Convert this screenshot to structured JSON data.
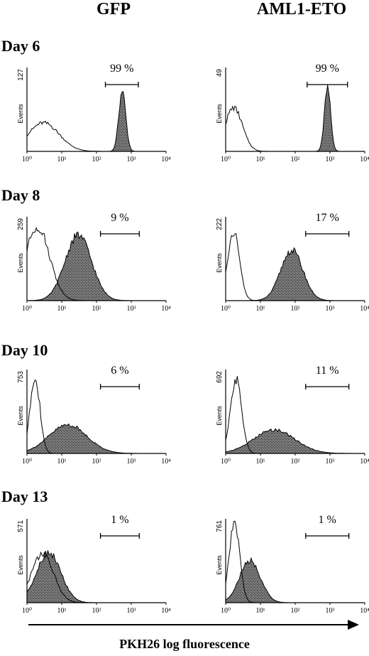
{
  "figure": {
    "columns": [
      "GFP",
      "AML1-ETO"
    ],
    "xaxis_caption": "PKH26 log fluorescence"
  },
  "chart_data": {
    "type": "histogram-grid",
    "x_scale": "log",
    "x_ticks": [
      "10⁰",
      "10¹",
      "10²",
      "10³",
      "10⁴"
    ],
    "x_tick_values": [
      1,
      10,
      100,
      1000,
      10000
    ],
    "ylabel": "Events",
    "rows": [
      {
        "day": "Day 6",
        "panels": [
          {
            "column": "GFP",
            "ymax": "127",
            "percent": "99 %",
            "open_curve": {
              "peak": 3,
              "sd_decades": 0.45,
              "height": 0.34
            },
            "filled_curve": {
              "peak": 550,
              "sd_decades": 0.1,
              "height": 0.72
            },
            "gate": [
              180,
              1600
            ]
          },
          {
            "column": "AML1-ETO",
            "ymax": "49",
            "percent": "99 %",
            "open_curve": {
              "peak": 1.7,
              "sd_decades": 0.25,
              "height": 0.52
            },
            "filled_curve": {
              "peak": 850,
              "sd_decades": 0.09,
              "height": 0.76
            },
            "gate": [
              220,
              3200
            ]
          }
        ]
      },
      {
        "day": "Day 8",
        "panels": [
          {
            "column": "GFP",
            "ymax": "259",
            "percent": "9 %",
            "open_curve": {
              "peak": 2,
              "sd_decades": 0.35,
              "height": 0.88
            },
            "filled_curve": {
              "peak": 30,
              "sd_decades": 0.38,
              "height": 0.78
            },
            "gate": [
              130,
              1700
            ]
          },
          {
            "column": "AML1-ETO",
            "ymax": "222",
            "percent": "17 %",
            "open_curve": {
              "peak": 1.7,
              "sd_decades": 0.17,
              "height": 0.82
            },
            "filled_curve": {
              "peak": 80,
              "sd_decades": 0.32,
              "height": 0.6
            },
            "gate": [
              200,
              3500
            ]
          }
        ]
      },
      {
        "day": "Day 10",
        "panels": [
          {
            "column": "GFP",
            "ymax": "753",
            "percent": "6 %",
            "open_curve": {
              "peak": 1.7,
              "sd_decades": 0.14,
              "height": 0.92
            },
            "filled_curve": {
              "peak": 15,
              "sd_decades": 0.55,
              "height": 0.34
            },
            "gate": [
              130,
              1700
            ]
          },
          {
            "column": "AML1-ETO",
            "ymax": "692",
            "percent": "11 %",
            "open_curve": {
              "peak": 2,
              "sd_decades": 0.16,
              "height": 0.88
            },
            "filled_curve": {
              "peak": 25,
              "sd_decades": 0.6,
              "height": 0.28
            },
            "gate": [
              200,
              3500
            ]
          }
        ]
      },
      {
        "day": "Day 13",
        "panels": [
          {
            "column": "GFP",
            "ymax": "571",
            "percent": "1 %",
            "open_curve": {
              "peak": 2.8,
              "sd_decades": 0.32,
              "height": 0.58
            },
            "filled_curve": {
              "peak": 4.2,
              "sd_decades": 0.35,
              "height": 0.6
            },
            "gate": [
              130,
              1700
            ]
          },
          {
            "column": "AML1-ETO",
            "ymax": "761",
            "percent": "1 %",
            "open_curve": {
              "peak": 1.8,
              "sd_decades": 0.15,
              "height": 0.95
            },
            "filled_curve": {
              "peak": 5,
              "sd_decades": 0.3,
              "height": 0.5
            },
            "gate": [
              200,
              3500
            ]
          }
        ]
      }
    ]
  }
}
